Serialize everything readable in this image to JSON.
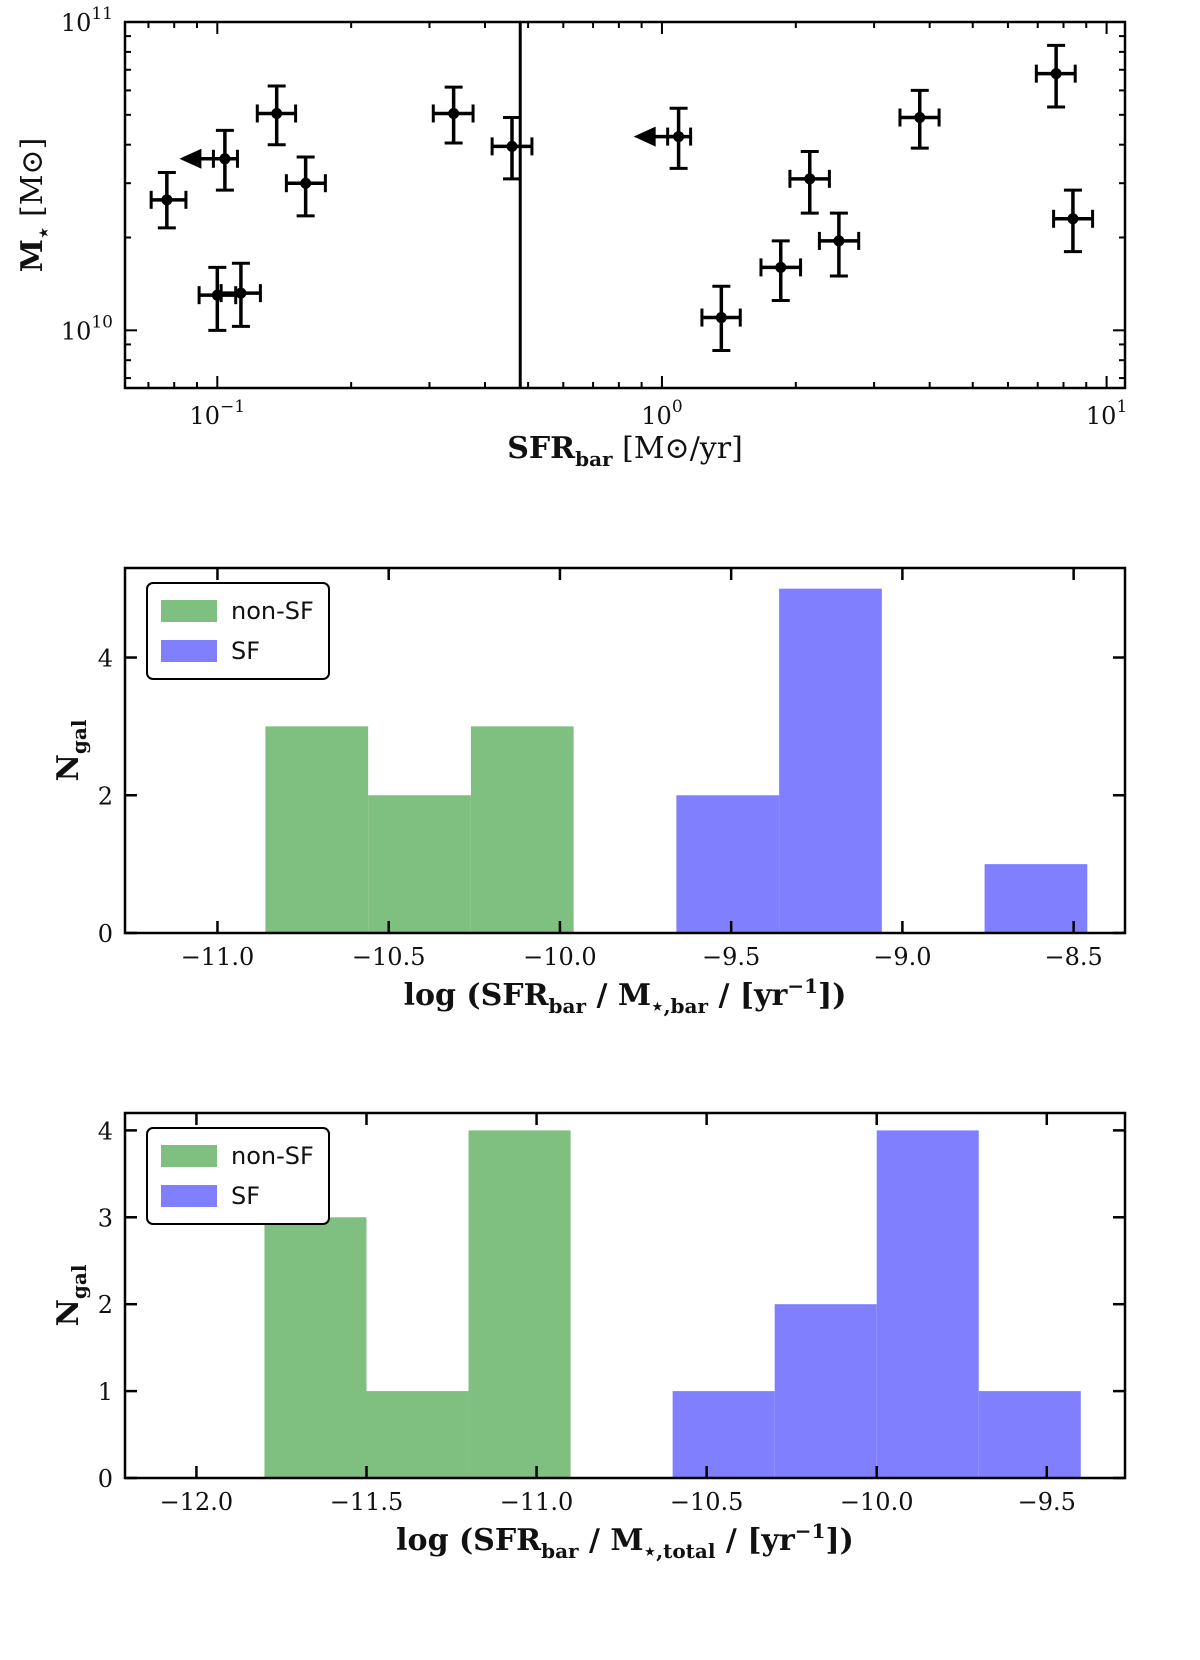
{
  "colors": {
    "non_sf": "#7fbf7f",
    "sf": "#8080ff",
    "ink": "#000000"
  },
  "chart_data": [
    {
      "type": "scatter",
      "x_scale": "log",
      "y_scale": "log",
      "xlim": [
        0.062,
        11.0
      ],
      "ylim": [
        6500000000,
        100000000000
      ],
      "xlabel": "SFR",
      "xlabel_sub": "bar",
      "xlabel_tail": " [M⊙/yr]",
      "ylabel": "M",
      "ylabel_sub": "⋆",
      "ylabel_tail": " [M⊙]",
      "x_ticks": [
        {
          "value": 0.1,
          "base": "10",
          "exp": "−1"
        },
        {
          "value": 1,
          "base": "10",
          "exp": "0"
        },
        {
          "value": 10,
          "base": "10",
          "exp": "1"
        }
      ],
      "y_ticks": [
        {
          "value": 10000000000,
          "base": "10",
          "exp": "10"
        },
        {
          "value": 100000000000,
          "base": "10",
          "exp": "11"
        }
      ],
      "vline_x": 0.48,
      "points": [
        {
          "x": 0.077,
          "y": 26500000000,
          "xlo": 0.071,
          "xhi": 0.085,
          "ylo": 21500000000,
          "yhi": 32500000000,
          "upper_limit": false
        },
        {
          "x": 0.104,
          "y": 36000000000,
          "xlo": 0.098,
          "xhi": 0.111,
          "ylo": 28500000000,
          "yhi": 44500000000,
          "upper_limit": true
        },
        {
          "x": 0.136,
          "y": 50500000000,
          "xlo": 0.123,
          "xhi": 0.15,
          "ylo": 40000000000,
          "yhi": 62000000000,
          "upper_limit": false
        },
        {
          "x": 0.158,
          "y": 30000000000,
          "xlo": 0.143,
          "xhi": 0.175,
          "ylo": 23500000000,
          "yhi": 36500000000,
          "upper_limit": false
        },
        {
          "x": 0.1,
          "y": 13000000000,
          "xlo": 0.091,
          "xhi": 0.11,
          "ylo": 10000000000,
          "yhi": 16000000000,
          "upper_limit": false
        },
        {
          "x": 0.113,
          "y": 13200000000,
          "xlo": 0.102,
          "xhi": 0.125,
          "ylo": 10300000000,
          "yhi": 16500000000,
          "upper_limit": false
        },
        {
          "x": 0.34,
          "y": 50500000000,
          "xlo": 0.306,
          "xhi": 0.376,
          "ylo": 40500000000,
          "yhi": 61500000000,
          "upper_limit": false
        },
        {
          "x": 0.46,
          "y": 39500000000,
          "xlo": 0.415,
          "xhi": 0.51,
          "ylo": 31000000000,
          "yhi": 49000000000,
          "upper_limit": false
        },
        {
          "x": 1.09,
          "y": 42500000000,
          "xlo": 1.03,
          "xhi": 1.16,
          "ylo": 33500000000,
          "yhi": 52500000000,
          "upper_limit": true
        },
        {
          "x": 1.36,
          "y": 11000000000,
          "xlo": 1.23,
          "xhi": 1.5,
          "ylo": 8600000000,
          "yhi": 13900000000,
          "upper_limit": false
        },
        {
          "x": 1.85,
          "y": 16000000000,
          "xlo": 1.67,
          "xhi": 2.05,
          "ylo": 12500000000,
          "yhi": 19500000000,
          "upper_limit": false
        },
        {
          "x": 2.15,
          "y": 31000000000,
          "xlo": 1.94,
          "xhi": 2.38,
          "ylo": 24000000000,
          "yhi": 38000000000,
          "upper_limit": false
        },
        {
          "x": 2.5,
          "y": 19500000000,
          "xlo": 2.26,
          "xhi": 2.77,
          "ylo": 15000000000,
          "yhi": 24000000000,
          "upper_limit": false
        },
        {
          "x": 3.8,
          "y": 49000000000,
          "xlo": 3.43,
          "xhi": 4.2,
          "ylo": 39000000000,
          "yhi": 60000000000,
          "upper_limit": false
        },
        {
          "x": 7.7,
          "y": 68000000000,
          "xlo": 6.95,
          "xhi": 8.5,
          "ylo": 53000000000,
          "yhi": 84000000000,
          "upper_limit": false
        },
        {
          "x": 8.4,
          "y": 23000000000,
          "xlo": 7.6,
          "xhi": 9.3,
          "ylo": 18000000000,
          "yhi": 28500000000,
          "upper_limit": false
        }
      ]
    },
    {
      "type": "bar",
      "subtype": "histogram",
      "xlim": [
        -11.27,
        -8.35
      ],
      "ylim": [
        0,
        5.3
      ],
      "xlabel": "log (SFR",
      "xlabel_parts": [
        {
          "t": "log (SFR",
          "sub": false
        },
        {
          "t": "bar",
          "sub": true
        },
        {
          "t": " / M",
          "sub": false
        },
        {
          "t": "⋆,bar",
          "sub": true
        },
        {
          "t": " / [yr",
          "sub": false
        },
        {
          "t": "−1",
          "sup": true
        },
        {
          "t": "])",
          "sub": false
        }
      ],
      "ylabel": "N",
      "ylabel_sub": "gal",
      "x_ticks": [
        "−11.0",
        "−10.5",
        "−10.0",
        "−9.5",
        "−9.0",
        "−8.5"
      ],
      "x_tick_values": [
        -11.0,
        -10.5,
        -10.0,
        -9.5,
        -9.0,
        -8.5
      ],
      "y_ticks": [
        "0",
        "2",
        "4"
      ],
      "y_tick_values": [
        0,
        2,
        4
      ],
      "series": [
        {
          "name": "non-SF",
          "color_key": "non_sf",
          "bins": [
            {
              "x0": -10.86,
              "x1": -10.56,
              "count": 3
            },
            {
              "x0": -10.56,
              "x1": -10.26,
              "count": 2
            },
            {
              "x0": -10.26,
              "x1": -9.96,
              "count": 3
            }
          ]
        },
        {
          "name": "SF",
          "color_key": "sf",
          "bins": [
            {
              "x0": -9.66,
              "x1": -9.36,
              "count": 2
            },
            {
              "x0": -9.36,
              "x1": -9.06,
              "count": 5
            },
            {
              "x0": -8.76,
              "x1": -8.46,
              "count": 1
            }
          ]
        }
      ],
      "legend": [
        {
          "label": "non-SF",
          "color_key": "non_sf"
        },
        {
          "label": "SF",
          "color_key": "sf"
        }
      ],
      "legend_position": "upper-left"
    },
    {
      "type": "bar",
      "subtype": "histogram",
      "xlim": [
        -12.21,
        -9.27
      ],
      "ylim": [
        0,
        4.2
      ],
      "xlabel_parts": [
        {
          "t": "log (SFR",
          "sub": false
        },
        {
          "t": "bar",
          "sub": true
        },
        {
          "t": " / M",
          "sub": false
        },
        {
          "t": "⋆,total",
          "sub": true
        },
        {
          "t": " / [yr",
          "sub": false
        },
        {
          "t": "−1",
          "sup": true
        },
        {
          "t": "])",
          "sub": false
        }
      ],
      "ylabel": "N",
      "ylabel_sub": "gal",
      "x_ticks": [
        "−12.0",
        "−11.5",
        "−11.0",
        "−10.5",
        "−10.0",
        "−9.5"
      ],
      "x_tick_values": [
        -12.0,
        -11.5,
        -11.0,
        -10.5,
        -10.0,
        -9.5
      ],
      "y_ticks": [
        "0",
        "1",
        "2",
        "3",
        "4"
      ],
      "y_tick_values": [
        0,
        1,
        2,
        3,
        4
      ],
      "series": [
        {
          "name": "non-SF",
          "color_key": "non_sf",
          "bins": [
            {
              "x0": -11.8,
              "x1": -11.5,
              "count": 3
            },
            {
              "x0": -11.5,
              "x1": -11.2,
              "count": 1
            },
            {
              "x0": -11.2,
              "x1": -10.9,
              "count": 4
            }
          ]
        },
        {
          "name": "SF",
          "color_key": "sf",
          "bins": [
            {
              "x0": -10.6,
              "x1": -10.3,
              "count": 1
            },
            {
              "x0": -10.3,
              "x1": -10.0,
              "count": 2
            },
            {
              "x0": -10.0,
              "x1": -9.7,
              "count": 4
            },
            {
              "x0": -9.7,
              "x1": -9.4,
              "count": 1
            }
          ]
        }
      ],
      "legend": [
        {
          "label": "non-SF",
          "color_key": "non_sf"
        },
        {
          "label": "SF",
          "color_key": "sf"
        }
      ],
      "legend_position": "upper-left"
    }
  ]
}
